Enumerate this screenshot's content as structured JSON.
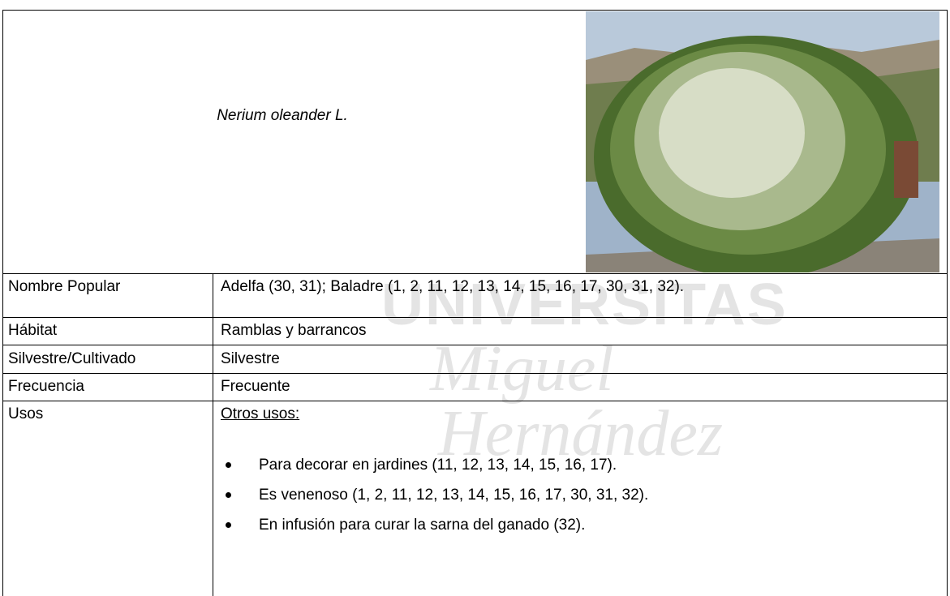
{
  "watermark": {
    "line1": "UNIVERSITAS",
    "line2": "Miguel",
    "line3": "Hernández"
  },
  "header": {
    "species": "Nerium oleander L."
  },
  "table": {
    "rows": [
      [
        "Nombre Popular",
        "Adelfa (30, 31); Baladre (1, 2, 11, 12, 13, 14, 15, 16, 17, 30, 31, 32)."
      ],
      [
        "Hábitat",
        "Ramblas y barrancos"
      ],
      [
        "Silvestre/Cultivado",
        "Silvestre"
      ],
      [
        "Frecuencia",
        "Frecuente"
      ]
    ]
  },
  "usos": {
    "label": "Usos",
    "heading": "Otros usos:",
    "items": [
      "Para decorar en jardines (11, 12, 13, 14, 15, 16, 17).",
      "Es venenoso (1, 2, 11, 12, 13, 14, 15, 16, 17, 30, 31, 32).",
      "En infusión para curar la sarna del ganado (32)."
    ]
  }
}
